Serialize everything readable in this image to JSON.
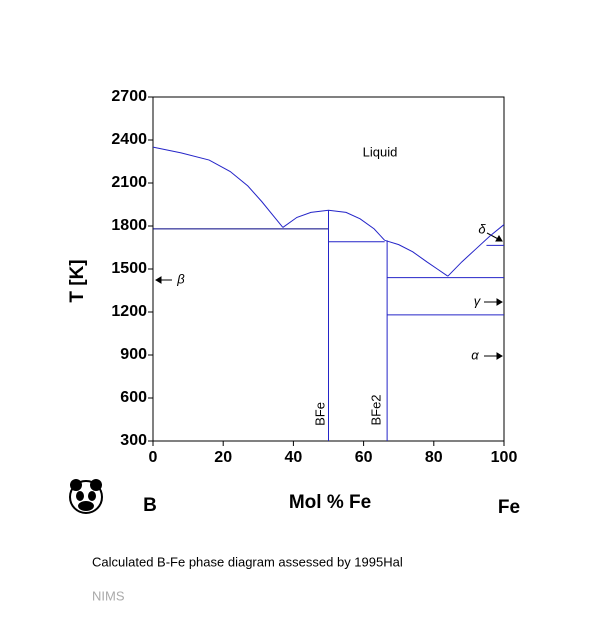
{
  "chart_data": {
    "type": "line",
    "xlabel": "Mol % Fe",
    "ylabel": "T [K]",
    "xlim": [
      0,
      100
    ],
    "ylim": [
      300,
      2700
    ],
    "xticks": [
      0,
      20,
      40,
      60,
      80,
      100
    ],
    "yticks": [
      300,
      600,
      900,
      1200,
      1500,
      1800,
      2100,
      2400,
      2700
    ],
    "series": [
      {
        "color": "#2424c8",
        "x": [
          0,
          8,
          16,
          22,
          27,
          31,
          34,
          37
        ],
        "values": [
          2350,
          2310,
          2260,
          2180,
          2080,
          1970,
          1880,
          1790
        ]
      },
      {
        "color": "#2424c8",
        "x": [
          37,
          41,
          45,
          50,
          55,
          59,
          63,
          66
        ],
        "values": [
          1790,
          1860,
          1895,
          1910,
          1895,
          1850,
          1780,
          1700
        ]
      },
      {
        "color": "#2424c8",
        "x": [
          66,
          70,
          74,
          78,
          81,
          84
        ],
        "values": [
          1700,
          1670,
          1620,
          1550,
          1500,
          1450
        ]
      },
      {
        "color": "#2424c8",
        "x": [
          84,
          88,
          92,
          96,
          100
        ],
        "values": [
          1450,
          1550,
          1640,
          1730,
          1810
        ]
      },
      {
        "color": "#000080",
        "x": [
          0,
          50
        ],
        "values": [
          1780,
          1780
        ]
      },
      {
        "color": "#2424c8",
        "x": [
          50,
          66
        ],
        "values": [
          1690,
          1690
        ]
      },
      {
        "color": "#2424c8",
        "x": [
          66.7,
          100
        ],
        "values": [
          1440,
          1440
        ]
      },
      {
        "color": "#2424c8",
        "x": [
          66.7,
          100
        ],
        "values": [
          1180,
          1180
        ]
      },
      {
        "color": "#2424c8",
        "x": [
          95,
          100
        ],
        "values": [
          1665,
          1665
        ]
      },
      {
        "color": "#2424c8",
        "x": [
          50,
          50
        ],
        "values": [
          300,
          1910
        ]
      },
      {
        "color": "#2424c8",
        "x": [
          66.7,
          66.7
        ],
        "values": [
          300,
          1700
        ]
      }
    ],
    "annotations": [
      "Liquid",
      "β",
      "γ",
      "α",
      "δ",
      "BFe",
      "BFe2",
      "B",
      "Fe"
    ],
    "caption": "Calculated B-Fe phase diagram assessed by 1995Hal",
    "source": "NIMS"
  }
}
